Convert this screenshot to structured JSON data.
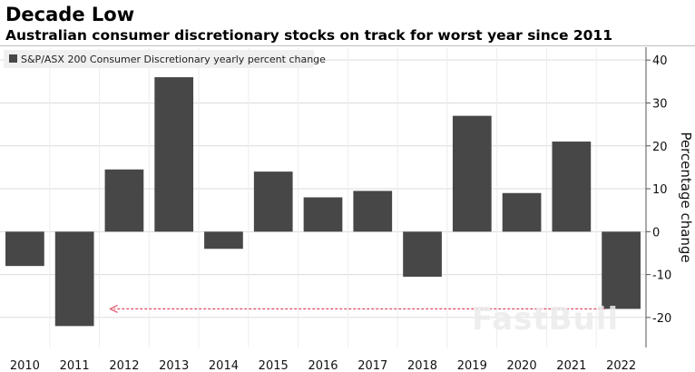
{
  "title": "Decade Low",
  "subtitle": "Australian consumer discretionary stocks on track for worst year since 2011",
  "watermark": "FastBull",
  "chart_data": {
    "type": "bar",
    "categories": [
      "2010",
      "2011",
      "2012",
      "2013",
      "2014",
      "2015",
      "2016",
      "2017",
      "2018",
      "2019",
      "2020",
      "2021",
      "2022"
    ],
    "series": [
      {
        "name": "S&P/ASX 200 Consumer Discretionary yearly percent change",
        "values": [
          -8,
          -22,
          14.5,
          36,
          -4,
          14,
          8,
          9.5,
          -10.5,
          27,
          9,
          21,
          -18
        ],
        "color": "#474747"
      }
    ],
    "ylabel": "Percentage change",
    "ylim": [
      -27,
      43
    ],
    "yticks": [
      40,
      30,
      20,
      10,
      0,
      -10,
      -20
    ],
    "ytick_labels": [
      "40",
      "30",
      "20",
      "10",
      "0",
      "-10",
      "-20"
    ],
    "grid": true,
    "y_axis_side": "right",
    "legend_position": "top-left",
    "annotation": {
      "type": "dashed-arrow",
      "value": -18,
      "from_category": "2022",
      "to_category": "2011",
      "color": "#e0556b"
    }
  }
}
